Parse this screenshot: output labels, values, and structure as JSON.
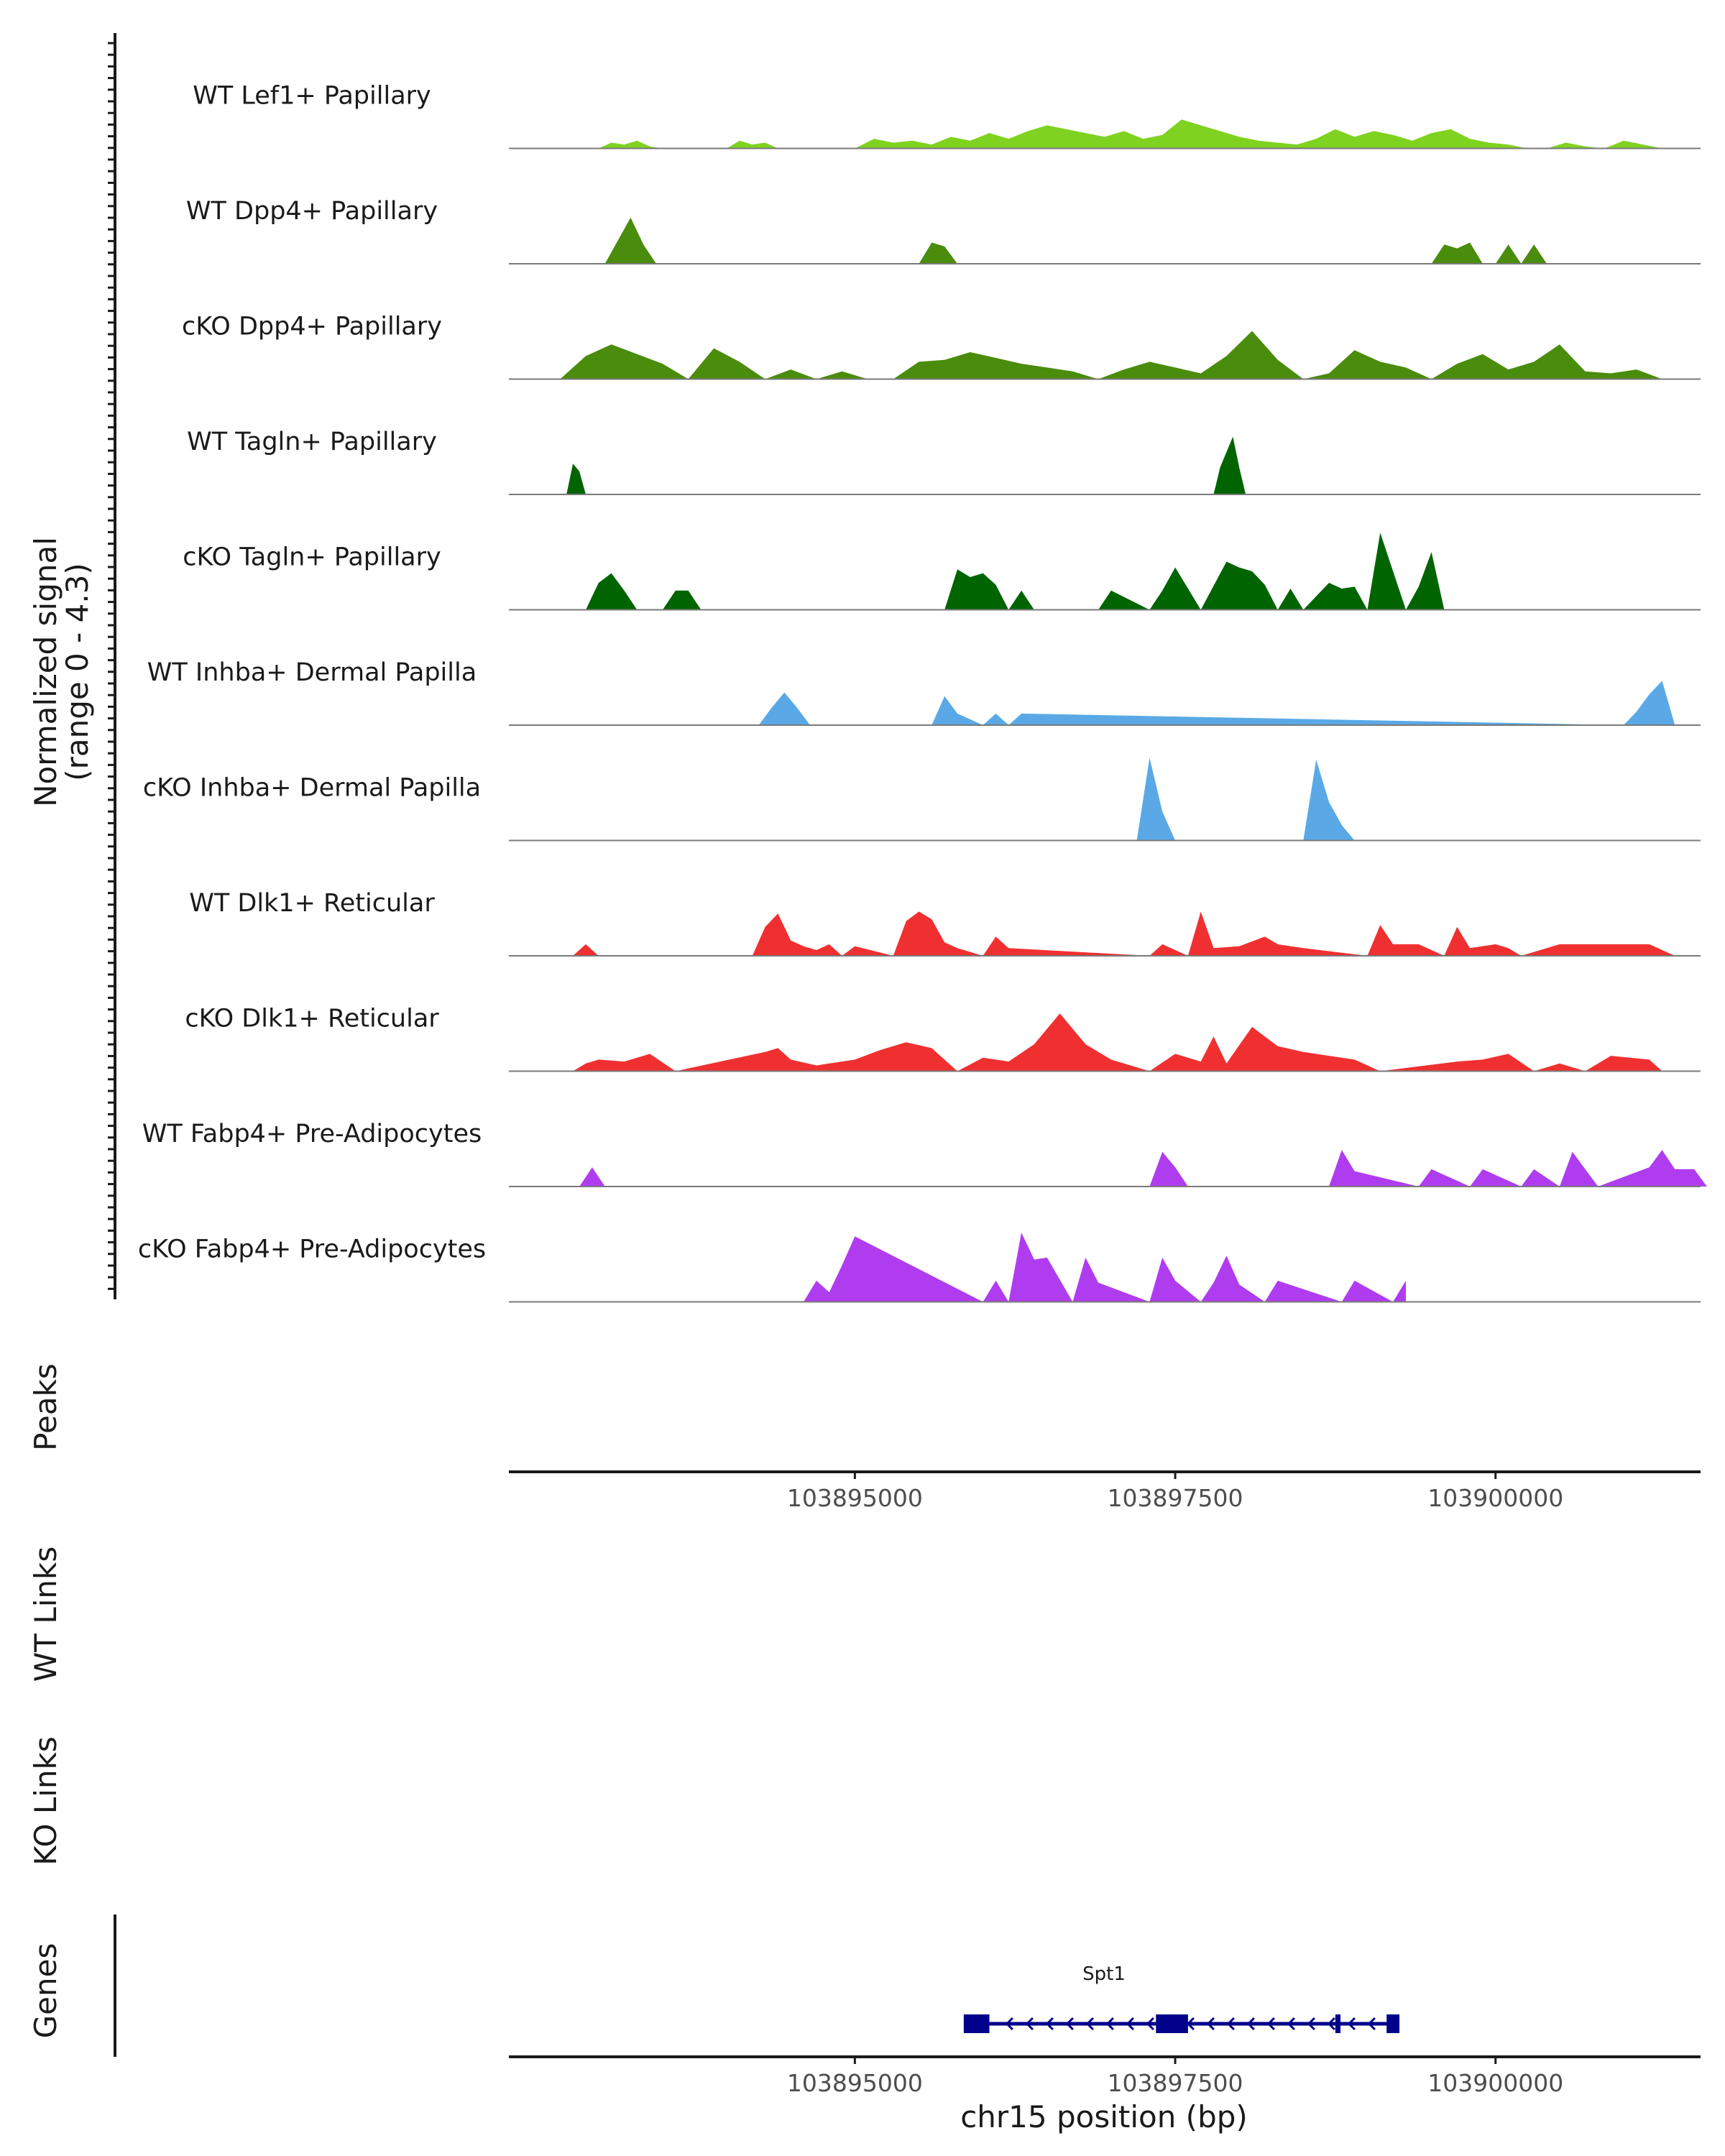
{
  "chart_data": {
    "type": "area",
    "title": "",
    "chromosome": "chr15",
    "xlabel": "chr15 position (bp)",
    "xlim": [
      103892300,
      103901600
    ],
    "x_ticks": [
      103895000,
      103897500,
      103900000
    ],
    "x_tick_labels": [
      "103895000",
      "103897500",
      "103900000"
    ],
    "coverage_ylabel": "Normalized signal",
    "coverage_range_label": "(range 0 - 4.3)",
    "ylim": [
      0,
      4.3
    ],
    "track_labels": {
      "peaks": "Peaks",
      "wt_links": "WT Links",
      "ko_links": "KO Links",
      "genes": "Genes"
    },
    "series": [
      {
        "name": "WT Lef1+ Papillary",
        "color": "#7fd320",
        "x": [
          103893000,
          103893100,
          103893200,
          103893300,
          103893400,
          103893500,
          103894000,
          103894100,
          103894200,
          103894300,
          103894400,
          103894500,
          103895000,
          103895150,
          103895300,
          103895450,
          103895600,
          103895750,
          103895900,
          103896050,
          103896200,
          103896350,
          103896500,
          103896650,
          103896800,
          103896950,
          103897100,
          103897250,
          103897400,
          103897550,
          103897700,
          103897850,
          103898000,
          103898150,
          103898300,
          103898450,
          103898600,
          103898750,
          103898900,
          103899050,
          103899200,
          103899350,
          103899500,
          103899650,
          103899800,
          103899950,
          103900100,
          103900250,
          103900400,
          103900550,
          103900700,
          103900850,
          103901000,
          103901150,
          103901300,
          103901450
        ],
        "values": [
          0,
          0.3,
          0.2,
          0.4,
          0.1,
          0,
          0,
          0.4,
          0.2,
          0.3,
          0,
          0,
          0,
          0.5,
          0.3,
          0.4,
          0.2,
          0.6,
          0.4,
          0.8,
          0.5,
          0.9,
          1.2,
          1.0,
          0.8,
          0.6,
          0.9,
          0.5,
          0.7,
          1.5,
          1.2,
          0.9,
          0.6,
          0.4,
          0.3,
          0.2,
          0.5,
          1.0,
          0.6,
          0.9,
          0.7,
          0.4,
          0.8,
          1.0,
          0.5,
          0.3,
          0.2,
          0,
          0,
          0.3,
          0.1,
          0,
          0.4,
          0.2,
          0,
          0
        ]
      },
      {
        "name": "WT Dpp4+ Papillary",
        "color": "#4a8c0c",
        "x": [
          103893050,
          103893150,
          103893250,
          103893350,
          103893450,
          103895500,
          103895600,
          103895700,
          103895800,
          103899500,
          103899600,
          103899700,
          103899800,
          103899900,
          103900000,
          103900100,
          103900200,
          103900300,
          103900400
        ],
        "values": [
          0,
          1.2,
          2.4,
          1.0,
          0,
          0,
          1.1,
          0.9,
          0,
          0,
          1.0,
          0.8,
          1.1,
          0,
          0,
          1.0,
          0,
          1.0,
          0
        ]
      },
      {
        "name": "cKO Dpp4+ Papillary",
        "color": "#4a8c0c",
        "x": [
          103892700,
          103892900,
          103893100,
          103893300,
          103893500,
          103893700,
          103893900,
          103894100,
          103894300,
          103894500,
          103894700,
          103894900,
          103895100,
          103895300,
          103895500,
          103895700,
          103895900,
          103896100,
          103896300,
          103896500,
          103896700,
          103896900,
          103897100,
          103897300,
          103897500,
          103897700,
          103897900,
          103898100,
          103898300,
          103898500,
          103898700,
          103898900,
          103899100,
          103899300,
          103899500,
          103899700,
          103899900,
          103900100,
          103900300,
          103900500,
          103900700,
          103900900,
          103901100,
          103901300
        ],
        "values": [
          0,
          1.2,
          1.8,
          1.3,
          0.8,
          0,
          1.6,
          0.9,
          0,
          0.5,
          0,
          0.4,
          0,
          0,
          0.9,
          1.0,
          1.4,
          1.1,
          0.8,
          0.6,
          0.4,
          0,
          0.5,
          0.9,
          0.6,
          0.3,
          1.2,
          2.5,
          1.0,
          0,
          0.3,
          1.5,
          0.9,
          0.6,
          0,
          0.8,
          1.3,
          0.5,
          0.9,
          1.8,
          0.4,
          0.3,
          0.5,
          0
        ]
      },
      {
        "name": "WT Tagln+ Papillary",
        "color": "#006400",
        "x": [
          103892750,
          103892800,
          103892850,
          103892900,
          103897800,
          103897850,
          103897950,
          103898000,
          103898050
        ],
        "values": [
          0,
          1.6,
          1.2,
          0,
          0,
          1.4,
          3.0,
          1.4,
          0
        ]
      },
      {
        "name": "cKO Tagln+ Papillary",
        "color": "#006400",
        "x": [
          103892900,
          103893000,
          103893100,
          103893200,
          103893300,
          103893500,
          103893600,
          103893700,
          103893800,
          103895700,
          103895800,
          103895900,
          103896000,
          103896100,
          103896200,
          103896300,
          103896400,
          103896900,
          103897000,
          103897300,
          103897400,
          103897500,
          103897600,
          103897700,
          103897900,
          103898000,
          103898100,
          103898200,
          103898300,
          103898400,
          103898500,
          103898700,
          103898800,
          103898900,
          103899000,
          103899100,
          103899300,
          103899400,
          103899500,
          103899600
        ],
        "values": [
          0,
          1.4,
          1.9,
          1.0,
          0,
          0,
          1.0,
          1.0,
          0,
          0,
          2.1,
          1.7,
          1.9,
          1.3,
          0,
          1.0,
          0,
          0,
          1.0,
          0,
          1.0,
          2.2,
          1.1,
          0,
          2.5,
          2.2,
          2.0,
          1.3,
          0,
          1.1,
          0,
          1.4,
          1.1,
          1.2,
          0,
          4.0,
          0,
          1.2,
          3.0,
          0
        ]
      },
      {
        "name": "WT Inhba+ Dermal Papilla",
        "color": "#5aa9e6",
        "x": [
          103894250,
          103894350,
          103894450,
          103894550,
          103894650,
          103895600,
          103895700,
          103895800,
          103896000,
          103896100,
          103896200,
          103896300,
          103901000,
          103901100,
          103901200,
          103901300,
          103901400
        ],
        "values": [
          0,
          0.9,
          1.7,
          0.9,
          0,
          0,
          1.5,
          0.6,
          0,
          0.6,
          0,
          0.6,
          0,
          0.7,
          1.6,
          2.3,
          0
        ]
      },
      {
        "name": "cKO Inhba+ Dermal Papilla",
        "color": "#5aa9e6",
        "x": [
          103897200,
          103897300,
          103897400,
          103897500,
          103898500,
          103898600,
          103898700,
          103898800,
          103898900
        ],
        "values": [
          0,
          4.3,
          1.5,
          0,
          0,
          4.2,
          2.0,
          0.8,
          0
        ]
      },
      {
        "name": "WT Dlk1+ Reticular",
        "color": "#f03030",
        "x": [
          103892800,
          103892900,
          103893000,
          103894200,
          103894300,
          103894400,
          103894500,
          103894600,
          103894700,
          103894800,
          103894900,
          103895000,
          103895300,
          103895400,
          103895500,
          103895600,
          103895700,
          103895800,
          103896000,
          103896100,
          103896200,
          103897300,
          103897400,
          103897600,
          103897700,
          103897800,
          103898000,
          103898200,
          103898300,
          103898500,
          103899000,
          103899100,
          103899200,
          103899400,
          103899600,
          103899700,
          103899800,
          103900000,
          103900100,
          103900200,
          103900500,
          103900900,
          103901200,
          103901400
        ],
        "values": [
          0,
          0.6,
          0,
          0,
          1.5,
          2.2,
          0.8,
          0.5,
          0.3,
          0.6,
          0,
          0.5,
          0,
          1.8,
          2.3,
          1.9,
          0.7,
          0.4,
          0,
          1.0,
          0.4,
          0,
          0.6,
          0,
          2.3,
          0.4,
          0.5,
          1.0,
          0.6,
          0.4,
          0,
          1.6,
          0.6,
          0.6,
          0,
          1.5,
          0.4,
          0.6,
          0.4,
          0,
          0.6,
          0.6,
          0.6,
          0
        ]
      },
      {
        "name": "cKO Dlk1+ Reticular",
        "color": "#f03030",
        "x": [
          103892800,
          103892900,
          103893000,
          103893200,
          103893400,
          103893600,
          103894300,
          103894400,
          103894500,
          103894700,
          103895000,
          103895200,
          103895400,
          103895600,
          103895800,
          103896000,
          103896200,
          103896400,
          103896600,
          103896800,
          103897000,
          103897300,
          103897500,
          103897700,
          103897800,
          103897900,
          103898100,
          103898300,
          103898500,
          103898700,
          103898900,
          103899100,
          103899700,
          103899900,
          103900100,
          103900300,
          103900500,
          103900700,
          103900900,
          103901200,
          103901300
        ],
        "values": [
          0,
          0.4,
          0.6,
          0.5,
          0.9,
          0,
          1.0,
          1.2,
          0.6,
          0.3,
          0.6,
          1.1,
          1.5,
          1.2,
          0,
          0.7,
          0.5,
          1.4,
          3.0,
          1.4,
          0.6,
          0,
          0.9,
          0.5,
          1.8,
          0.4,
          2.3,
          1.3,
          1.0,
          0.8,
          0.6,
          0,
          0.5,
          0.6,
          0.9,
          0,
          0.4,
          0,
          0.8,
          0.6,
          0
        ]
      },
      {
        "name": "WT Fabp4+ Pre-Adipocytes",
        "color": "#b03cf0",
        "x": [
          103892850,
          103892950,
          103893050,
          103897300,
          103897400,
          103897500,
          103897600,
          103898700,
          103898800,
          103898900,
          103899400,
          103899500,
          103899800,
          103899900,
          103900200,
          103900300,
          103900500,
          103900600,
          103900700,
          103900800,
          103901200,
          103901300,
          103901400,
          103901550,
          103901650
        ],
        "values": [
          0,
          1.0,
          0,
          0,
          1.8,
          1.0,
          0,
          0,
          1.9,
          0.8,
          0,
          0.9,
          0,
          0.9,
          0,
          0.9,
          0,
          1.8,
          0.9,
          0,
          1.0,
          1.9,
          0.9,
          0.9,
          0
        ]
      },
      {
        "name": "cKO Fabp4+ Pre-Adipocytes",
        "color": "#b03cf0",
        "x": [
          103894600,
          103894700,
          103894800,
          103894900,
          103895000,
          103896000,
          103896100,
          103896200,
          103896300,
          103896400,
          103896500,
          103896700,
          103896800,
          103896900,
          103897300,
          103897400,
          103897500,
          103897700,
          103897800,
          103897900,
          103898000,
          103898200,
          103898300,
          103898800,
          103898900,
          103899200,
          103899300
        ],
        "values": [
          0,
          1.1,
          0.5,
          1.9,
          3.4,
          0,
          1.1,
          0,
          3.6,
          2.2,
          2.3,
          0,
          2.3,
          1.0,
          0,
          2.3,
          1.1,
          0,
          1.0,
          2.4,
          0.9,
          0,
          1.1,
          0,
          1.1,
          0,
          1.1
        ]
      }
    ],
    "gene": {
      "name": "Spt1",
      "start": 103895850,
      "end": 103899250,
      "strand": "-",
      "exons": [
        [
          103895850,
          103896050
        ],
        [
          103897350,
          103897600
        ],
        [
          103898750,
          103898790
        ],
        [
          103899150,
          103899250
        ]
      ]
    }
  }
}
